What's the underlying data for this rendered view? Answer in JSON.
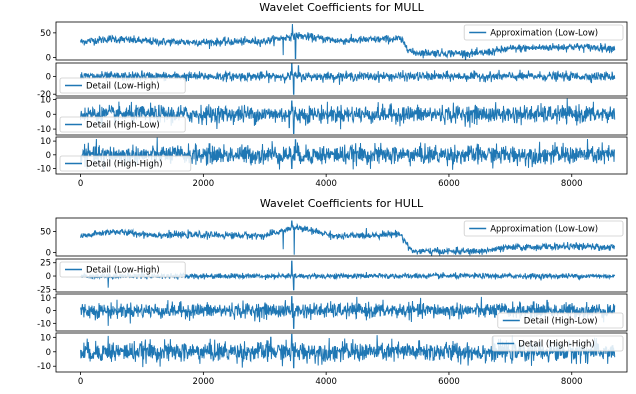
{
  "chart_data": [
    {
      "type": "line",
      "title": "Wavelet Coefficients for MULL",
      "xlim": [
        -400,
        8900
      ],
      "xticks": [
        0,
        2000,
        4000,
        6000,
        8000
      ],
      "line_color": "#1f77b4",
      "panels": [
        {
          "name": "Approximation (Low-Low)",
          "legend_loc": "top-right",
          "ylim": [
            -5,
            72
          ],
          "yticks": [
            0,
            50
          ],
          "trend": [
            [
              0,
              32
            ],
            [
              500,
              38
            ],
            [
              1200,
              32
            ],
            [
              2000,
              31
            ],
            [
              3000,
              33
            ],
            [
              3500,
              45
            ],
            [
              4200,
              34
            ],
            [
              5200,
              38
            ],
            [
              5400,
              10
            ],
            [
              6500,
              8
            ],
            [
              7000,
              18
            ],
            [
              8000,
              22
            ],
            [
              8700,
              19
            ]
          ],
          "noise": 4,
          "spikes": [
            [
              3450,
              68
            ],
            [
              3500,
              -2
            ],
            [
              3300,
              5
            ]
          ]
        },
        {
          "name": "Detail (Low-High)",
          "legend_loc": "bottom-left",
          "ylim": [
            -22,
            15
          ],
          "yticks": [
            -20,
            0
          ],
          "trend": [
            [
              0,
              0
            ],
            [
              8700,
              0
            ]
          ],
          "noise": 2.5,
          "spikes": [
            [
              3440,
              14
            ],
            [
              3470,
              -20
            ],
            [
              3550,
              12
            ],
            [
              1000,
              6
            ]
          ]
        },
        {
          "name": "Detail (High-Low)",
          "legend_loc": "bottom-left",
          "ylim": [
            -14,
            11
          ],
          "yticks": [
            -10,
            0,
            10
          ],
          "trend": [
            [
              0,
              0
            ],
            [
              8700,
              0
            ]
          ],
          "noise": 3,
          "spikes": [
            [
              3440,
              9
            ],
            [
              3470,
              -13
            ],
            [
              3400,
              -9
            ],
            [
              1500,
              -6
            ]
          ]
        },
        {
          "name": "Detail (High-High)",
          "legend_loc": "bottom-left",
          "ylim": [
            -14,
            13
          ],
          "yticks": [
            -10,
            0,
            10
          ],
          "trend": [
            [
              0,
              0
            ],
            [
              8700,
              0
            ]
          ],
          "noise": 3.5,
          "spikes": [
            [
              3120,
              10
            ],
            [
              3440,
              -10
            ],
            [
              3500,
              11
            ],
            [
              380,
              -10
            ]
          ]
        }
      ]
    },
    {
      "type": "line",
      "title": "Wavelet Coefficients for HULL",
      "xlim": [
        -400,
        8900
      ],
      "xticks": [
        0,
        2000,
        4000,
        6000,
        8000
      ],
      "line_color": "#1f77b4",
      "panels": [
        {
          "name": "Approximation (Low-Low)",
          "legend_loc": "top-right",
          "ylim": [
            -8,
            82
          ],
          "yticks": [
            0,
            50
          ],
          "trend": [
            [
              0,
              38
            ],
            [
              500,
              50
            ],
            [
              1200,
              42
            ],
            [
              2000,
              42
            ],
            [
              3000,
              40
            ],
            [
              3500,
              60
            ],
            [
              4200,
              38
            ],
            [
              5200,
              45
            ],
            [
              5400,
              3
            ],
            [
              6500,
              3
            ],
            [
              7000,
              12
            ],
            [
              8000,
              15
            ],
            [
              8700,
              12
            ]
          ],
          "noise": 4,
          "spikes": [
            [
              3440,
              75
            ],
            [
              3480,
              -5
            ],
            [
              3300,
              8
            ]
          ]
        },
        {
          "name": "Detail (Low-High)",
          "legend_loc": "top-left",
          "ylim": [
            -30,
            32
          ],
          "yticks": [
            -25,
            0,
            25
          ],
          "trend": [
            [
              0,
              0
            ],
            [
              8700,
              0
            ]
          ],
          "noise": 2.5,
          "spikes": [
            [
              3440,
              28
            ],
            [
              3470,
              -26
            ],
            [
              450,
              -22
            ],
            [
              1000,
              8
            ]
          ]
        },
        {
          "name": "Detail (High-Low)",
          "legend_loc": "bottom-right",
          "ylim": [
            -16,
            13
          ],
          "yticks": [
            -10,
            0,
            10
          ],
          "trend": [
            [
              0,
              0
            ],
            [
              8700,
              0
            ]
          ],
          "noise": 3,
          "spikes": [
            [
              3440,
              11
            ],
            [
              3470,
              -14
            ],
            [
              450,
              -12
            ],
            [
              7600,
              8
            ]
          ]
        },
        {
          "name": "Detail (High-High)",
          "legend_loc": "top-right",
          "ylim": [
            -14,
            13
          ],
          "yticks": [
            -10,
            0,
            10
          ],
          "trend": [
            [
              0,
              0
            ],
            [
              8700,
              0
            ]
          ],
          "noise": 3.5,
          "spikes": [
            [
              3440,
              12
            ],
            [
              3470,
              -11
            ],
            [
              450,
              11
            ],
            [
              3100,
              10
            ]
          ]
        }
      ]
    }
  ]
}
